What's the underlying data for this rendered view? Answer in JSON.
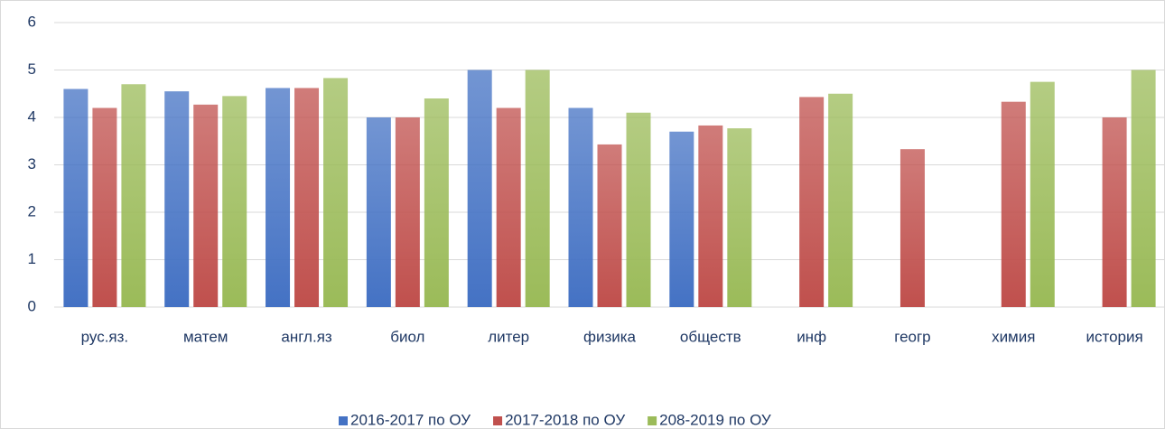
{
  "chart_data": {
    "type": "bar",
    "categories": [
      "рус.яз.",
      "матем",
      "англ.яз",
      "биол",
      "литер",
      "физика",
      "обществ",
      "инф",
      "геогр",
      "химия",
      "история"
    ],
    "series": [
      {
        "name": "2016-2017 по ОУ",
        "color": "#4472c4",
        "values": [
          4.6,
          4.55,
          4.62,
          4.0,
          5.0,
          4.2,
          3.7,
          null,
          null,
          null,
          null
        ]
      },
      {
        "name": "2017-2018 по ОУ",
        "color": "#c0504d",
        "values": [
          4.2,
          4.27,
          4.62,
          4.0,
          4.2,
          3.43,
          3.83,
          4.43,
          3.33,
          4.33,
          4.0
        ]
      },
      {
        "name": "208-2019 по ОУ",
        "color": "#9bbb59",
        "values": [
          4.7,
          4.45,
          4.83,
          4.4,
          5.0,
          4.1,
          3.77,
          4.5,
          null,
          4.75,
          5.0
        ]
      }
    ],
    "ylim": [
      0,
      6
    ],
    "yticks": [
      0,
      1,
      2,
      3,
      4,
      5,
      6
    ],
    "grid": true,
    "legend": "bottom"
  }
}
